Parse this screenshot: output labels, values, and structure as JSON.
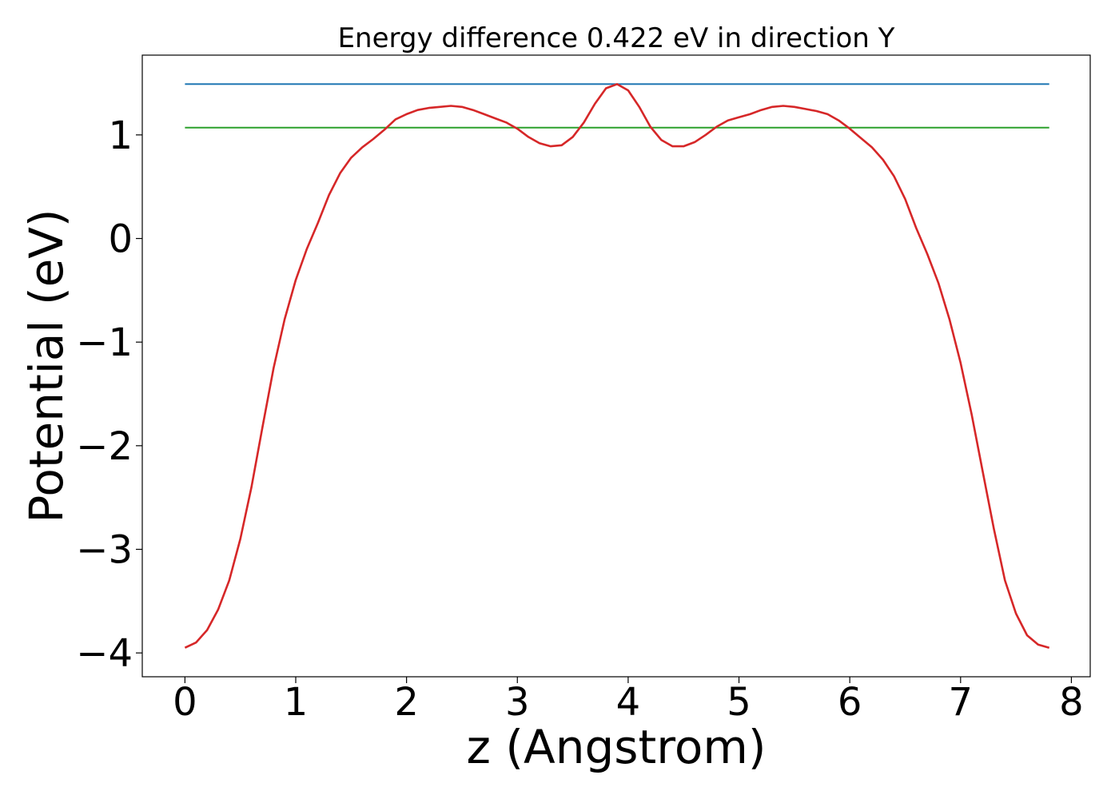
{
  "chart_data": {
    "type": "line",
    "title": "Energy difference 0.422 eV in direction Y",
    "xlabel": "z (Angstrom)",
    "ylabel": "Potential (eV)",
    "xlim": [
      -0.385,
      8.17
    ],
    "ylim": [
      -4.23,
      1.77
    ],
    "xticks": [
      0,
      1,
      2,
      3,
      4,
      5,
      6,
      7,
      8
    ],
    "xtick_labels": [
      "0",
      "1",
      "2",
      "3",
      "4",
      "5",
      "6",
      "7",
      "8"
    ],
    "yticks": [
      -4,
      -3,
      -2,
      -1,
      0,
      1
    ],
    "ytick_labels": [
      "−4",
      "−3",
      "−2",
      "−1",
      "0",
      "1"
    ],
    "grid": false,
    "series": [
      {
        "color": "#1f77b4",
        "x": [
          0,
          7.8
        ],
        "y": [
          1.49,
          1.49
        ]
      },
      {
        "color": "#2ca02c",
        "x": [
          0,
          7.8
        ],
        "y": [
          1.07,
          1.07
        ]
      },
      {
        "color": "#d62728",
        "x": [
          0,
          0.1,
          0.2,
          0.3,
          0.4,
          0.5,
          0.6,
          0.7,
          0.8,
          0.9,
          1.0,
          1.1,
          1.2,
          1.3,
          1.4,
          1.5,
          1.6,
          1.7,
          1.8,
          1.9,
          2.0,
          2.1,
          2.2,
          2.3,
          2.4,
          2.5,
          2.6,
          2.7,
          2.8,
          2.9,
          3.0,
          3.1,
          3.2,
          3.3,
          3.4,
          3.5,
          3.6,
          3.7,
          3.8,
          3.9,
          4.0,
          4.1,
          4.2,
          4.3,
          4.4,
          4.5,
          4.6,
          4.7,
          4.8,
          4.9,
          5.0,
          5.1,
          5.2,
          5.3,
          5.4,
          5.5,
          5.6,
          5.7,
          5.8,
          5.9,
          6.0,
          6.1,
          6.2,
          6.3,
          6.4,
          6.5,
          6.6,
          6.7,
          6.8,
          6.9,
          7.0,
          7.1,
          7.2,
          7.3,
          7.4,
          7.5,
          7.6,
          7.7,
          7.8
        ],
        "y": [
          -3.95,
          -3.9,
          -3.78,
          -3.58,
          -3.3,
          -2.9,
          -2.4,
          -1.82,
          -1.25,
          -0.78,
          -0.4,
          -0.1,
          0.15,
          0.42,
          0.63,
          0.78,
          0.88,
          0.96,
          1.05,
          1.15,
          1.2,
          1.24,
          1.26,
          1.27,
          1.28,
          1.27,
          1.24,
          1.2,
          1.16,
          1.12,
          1.06,
          0.98,
          0.92,
          0.89,
          0.9,
          0.98,
          1.12,
          1.3,
          1.45,
          1.49,
          1.43,
          1.27,
          1.08,
          0.95,
          0.89,
          0.89,
          0.93,
          1.0,
          1.08,
          1.14,
          1.17,
          1.2,
          1.24,
          1.27,
          1.28,
          1.27,
          1.25,
          1.23,
          1.2,
          1.14,
          1.06,
          0.97,
          0.88,
          0.76,
          0.6,
          0.38,
          0.1,
          -0.15,
          -0.43,
          -0.78,
          -1.2,
          -1.7,
          -2.25,
          -2.8,
          -3.3,
          -3.62,
          -3.83,
          -3.92,
          -3.95
        ]
      }
    ]
  }
}
